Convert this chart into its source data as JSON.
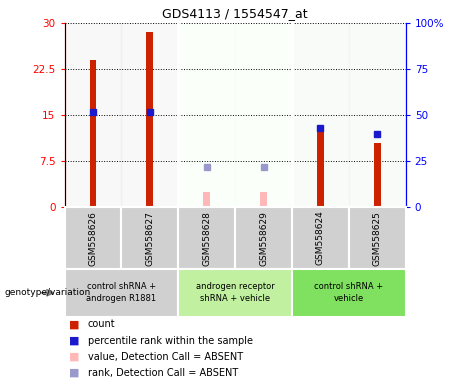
{
  "title": "GDS4113 / 1554547_at",
  "samples": [
    "GSM558626",
    "GSM558627",
    "GSM558628",
    "GSM558629",
    "GSM558624",
    "GSM558625"
  ],
  "count_values": [
    24.0,
    28.5,
    null,
    null,
    13.0,
    10.5
  ],
  "count_absent_values": [
    null,
    null,
    2.5,
    2.5,
    null,
    null
  ],
  "rank_values": [
    52,
    52,
    null,
    null,
    43,
    40
  ],
  "rank_absent_values": [
    null,
    null,
    22,
    22,
    null,
    null
  ],
  "ylim_left": [
    0,
    30
  ],
  "ylim_right": [
    0,
    100
  ],
  "yticks_left": [
    0,
    7.5,
    15,
    22.5,
    30
  ],
  "ytick_labels_left": [
    "0",
    "7.5",
    "15",
    "22.5",
    "30"
  ],
  "yticks_right": [
    0,
    25,
    50,
    75,
    100
  ],
  "ytick_labels_right": [
    "0",
    "25",
    "50",
    "75",
    "100%"
  ],
  "bar_color_red": "#cc2200",
  "bar_color_pink": "#ffb8b8",
  "dot_color_blue": "#1a1acc",
  "dot_color_lightblue": "#9999cc",
  "bar_width": 0.12,
  "genotype_label": "genotype/variation",
  "legend_items": [
    {
      "color": "#cc2200",
      "label": "count"
    },
    {
      "color": "#1a1acc",
      "label": "percentile rank within the sample"
    },
    {
      "color": "#ffb8b8",
      "label": "value, Detection Call = ABSENT"
    },
    {
      "color": "#9999cc",
      "label": "rank, Detection Call = ABSENT"
    }
  ],
  "sample_bg_color": "#d0d0d0",
  "group_info": [
    {
      "start": 0,
      "end": 1,
      "color": "#d0d0d0",
      "label": "control shRNA +\nandrogen R1881"
    },
    {
      "start": 2,
      "end": 3,
      "color": "#c0f0a0",
      "label": "androgen receptor\nshRNA + vehicle"
    },
    {
      "start": 4,
      "end": 5,
      "color": "#80e060",
      "label": "control shRNA +\nvehicle"
    }
  ]
}
